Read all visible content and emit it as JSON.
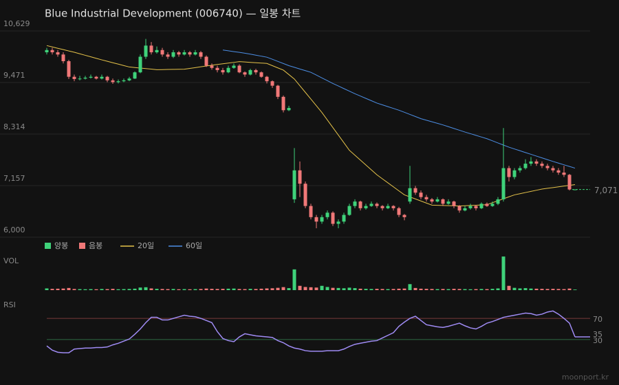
{
  "chart_data": [
    {
      "type": "candlestick",
      "title": "Blue Industrial Development (006740) — 일봉 차트",
      "ylim": [
        6000,
        10629
      ],
      "yticks": [
        {
          "value": 6000,
          "label": "6,000"
        },
        {
          "value": 7157,
          "label": "7,157"
        },
        {
          "value": 8314,
          "label": "8,314"
        },
        {
          "value": 9471,
          "label": "9,471"
        },
        {
          "value": 10629,
          "label": "10,629"
        }
      ],
      "grid": true,
      "candle_legend": [
        {
          "name": "양봉",
          "color": "#3fd27a"
        },
        {
          "name": "음봉",
          "color": "#f07878"
        }
      ],
      "candles": {
        "open": [
          10150,
          10200,
          10150,
          10100,
          9950,
          9600,
          9550,
          9560,
          9580,
          9600,
          9560,
          9600,
          9520,
          9480,
          9500,
          9520,
          9560,
          9700,
          10050,
          10300,
          10150,
          10200,
          10100,
          10050,
          10150,
          10100,
          10150,
          10100,
          10150,
          10050,
          9850,
          9800,
          9750,
          9700,
          9800,
          9850,
          9700,
          9650,
          9750,
          9700,
          9600,
          9500,
          9400,
          9150,
          8850,
          6850,
          7500,
          7200,
          6700,
          6450,
          6350,
          6450,
          6550,
          6300,
          6350,
          6500,
          6700,
          6800,
          6650,
          6700,
          6750,
          6700,
          6650,
          6700,
          6650,
          6500,
          6800,
          7100,
          7000,
          6900,
          6850,
          6800,
          6850,
          6750,
          6800,
          6700,
          6600,
          6650,
          6700,
          6650,
          6750,
          6700,
          6750,
          6850,
          7550,
          7350,
          7500,
          7550,
          7650,
          7700,
          7650,
          7600,
          7550,
          7500,
          7450,
          7400,
          7071
        ],
        "high": [
          10250,
          10250,
          10200,
          10150,
          9980,
          9650,
          9620,
          9620,
          9650,
          9620,
          9650,
          9620,
          9560,
          9540,
          9560,
          9600,
          9720,
          10100,
          10450,
          10380,
          10280,
          10250,
          10150,
          10200,
          10180,
          10200,
          10180,
          10200,
          10180,
          10080,
          9900,
          9850,
          9800,
          9850,
          9900,
          9880,
          9720,
          9780,
          9780,
          9720,
          9620,
          9520,
          9420,
          9180,
          8950,
          8000,
          7700,
          7250,
          6750,
          6500,
          6500,
          6600,
          6580,
          6400,
          6550,
          6750,
          6850,
          6820,
          6750,
          6800,
          6780,
          6720,
          6750,
          6720,
          6680,
          6520,
          7600,
          7150,
          7050,
          6950,
          6880,
          6900,
          6870,
          6850,
          6820,
          6720,
          6700,
          6750,
          6720,
          6780,
          6780,
          6800,
          6900,
          8450,
          7600,
          7550,
          7600,
          7750,
          7800,
          7750,
          7700,
          7650,
          7600,
          7550,
          7600,
          7420,
          7071
        ],
        "low": [
          10100,
          10100,
          10050,
          9900,
          9550,
          9500,
          9520,
          9540,
          9560,
          9540,
          9540,
          9480,
          9440,
          9450,
          9480,
          9500,
          9550,
          9680,
          10000,
          10100,
          10120,
          10050,
          10000,
          10020,
          10050,
          10080,
          10050,
          10080,
          10000,
          9820,
          9760,
          9700,
          9650,
          9680,
          9780,
          9680,
          9600,
          9630,
          9650,
          9580,
          9450,
          9350,
          9100,
          8800,
          8830,
          6770,
          6900,
          6650,
          6400,
          6200,
          6300,
          6400,
          6250,
          6200,
          6300,
          6480,
          6650,
          6600,
          6620,
          6680,
          6650,
          6600,
          6630,
          6600,
          6450,
          6380,
          6750,
          6950,
          6850,
          6800,
          6750,
          6780,
          6700,
          6730,
          6650,
          6550,
          6580,
          6620,
          6600,
          6630,
          6680,
          6680,
          6720,
          6800,
          7250,
          7300,
          7450,
          7520,
          7600,
          7600,
          7550,
          7500,
          7450,
          7400,
          7350,
          7050,
          7071
        ],
        "close": [
          10200,
          10150,
          10100,
          9950,
          9600,
          9550,
          9560,
          9580,
          9600,
          9560,
          9600,
          9520,
          9480,
          9500,
          9520,
          9560,
          9700,
          10050,
          10300,
          10150,
          10200,
          10100,
          10050,
          10150,
          10100,
          10150,
          10100,
          10150,
          10050,
          9850,
          9800,
          9750,
          9700,
          9800,
          9850,
          9700,
          9650,
          9750,
          9700,
          9600,
          9500,
          9400,
          9150,
          8850,
          8900,
          7500,
          7200,
          6700,
          6450,
          6350,
          6450,
          6550,
          6300,
          6350,
          6500,
          6700,
          6800,
          6650,
          6700,
          6750,
          6700,
          6650,
          6700,
          6650,
          6500,
          6450,
          7100,
          7000,
          6900,
          6850,
          6800,
          6850,
          6750,
          6800,
          6700,
          6600,
          6650,
          6700,
          6650,
          6750,
          6700,
          6750,
          6850,
          7550,
          7350,
          7500,
          7550,
          7650,
          7700,
          7650,
          7600,
          7550,
          7500,
          7450,
          7400,
          7071,
          7071
        ]
      },
      "series": [
        {
          "name": "20일",
          "color": "#e6c34a",
          "values": [
            10300,
            10270,
            10240,
            10210,
            10180,
            10150,
            10116,
            10082,
            10048,
            10014,
            9980,
            9948,
            9916,
            9884,
            9852,
            9820,
            9808,
            9796,
            9784,
            9772,
            9760,
            9762,
            9764,
            9766,
            9768,
            9770,
            9788,
            9806,
            9824,
            9842,
            9860,
            9876,
            9892,
            9908,
            9924,
            9940,
            9932,
            9924,
            9916,
            9908,
            9900,
            9850,
            9800,
            9750,
            9650,
            9550,
            9400,
            9250,
            9100,
            8950,
            8800,
            8630,
            8460,
            8290,
            8120,
            7950,
            7840,
            7730,
            7620,
            7510,
            7400,
            7310,
            7220,
            7130,
            7040,
            6950,
            6904,
            6858,
            6812,
            6766,
            6720,
            6716,
            6712,
            6708,
            6704,
            6700,
            6706,
            6712,
            6718,
            6724,
            6730,
            6774,
            6818,
            6862,
            6906,
            6950,
            6976,
            7002,
            7028,
            7054,
            7080,
            7097,
            7113,
            7130,
            7147,
            7163,
            7180
          ]
        },
        {
          "name": "60일",
          "color": "#4d8fe6",
          "values": [
            null,
            null,
            null,
            null,
            null,
            null,
            null,
            null,
            null,
            null,
            null,
            null,
            null,
            null,
            null,
            null,
            null,
            null,
            null,
            null,
            null,
            null,
            null,
            null,
            null,
            null,
            null,
            null,
            null,
            null,
            null,
            null,
            10200,
            10183,
            10165,
            10148,
            10130,
            10108,
            10085,
            10063,
            10040,
            9993,
            9945,
            9898,
            9850,
            9813,
            9775,
            9738,
            9700,
            9638,
            9575,
            9513,
            9450,
            9393,
            9335,
            9278,
            9220,
            9168,
            9115,
            9063,
            9010,
            8970,
            8930,
            8890,
            8850,
            8803,
            8755,
            8708,
            8660,
            8625,
            8590,
            8555,
            8520,
            8480,
            8440,
            8400,
            8360,
            8323,
            8285,
            8248,
            8210,
            8163,
            8115,
            8068,
            8020,
            7980,
            7940,
            7900,
            7860,
            7820,
            7780,
            7740,
            7700,
            7663,
            7625,
            7588,
            7550
          ]
        }
      ],
      "last_price": {
        "value": 7071,
        "label": "7,071",
        "color": "#3fd27a"
      }
    },
    {
      "type": "bar",
      "title": "VOL",
      "ylim": [
        0,
        2500000
      ],
      "values": [
        120000,
        90000,
        100000,
        110000,
        150000,
        80000,
        70000,
        60000,
        70000,
        60000,
        80000,
        70000,
        90000,
        60000,
        70000,
        80000,
        100000,
        180000,
        200000,
        120000,
        90000,
        80000,
        70000,
        80000,
        60000,
        70000,
        60000,
        70000,
        80000,
        110000,
        90000,
        80000,
        90000,
        100000,
        110000,
        80000,
        70000,
        90000,
        80000,
        100000,
        120000,
        130000,
        160000,
        210000,
        140000,
        1450000,
        300000,
        220000,
        200000,
        180000,
        300000,
        220000,
        160000,
        150000,
        130000,
        170000,
        140000,
        100000,
        90000,
        80000,
        90000,
        80000,
        70000,
        80000,
        100000,
        110000,
        420000,
        150000,
        100000,
        90000,
        80000,
        70000,
        80000,
        70000,
        90000,
        80000,
        70000,
        60000,
        70000,
        80000,
        70000,
        90000,
        120000,
        2350000,
        300000,
        160000,
        120000,
        140000,
        110000,
        100000,
        90000,
        80000,
        90000,
        80000,
        70000,
        110000,
        40000
      ]
    },
    {
      "type": "line",
      "title": "RSI",
      "ylim": [
        0,
        100
      ],
      "yticks": [
        30,
        70
      ],
      "tick_colors": [
        "#2f6b45",
        "#7a3a3a"
      ],
      "tick_label_colors": [
        "#3fd27a",
        "#e07a6a"
      ],
      "series": [
        {
          "color": "#a08cf5",
          "values": [
            18,
            10,
            6,
            5,
            5,
            12,
            13,
            14,
            14,
            15,
            15,
            16,
            20,
            23,
            27,
            31,
            40,
            50,
            62,
            72,
            72,
            67,
            67,
            70,
            73,
            76,
            74,
            73,
            70,
            66,
            62,
            45,
            32,
            28,
            26,
            35,
            41,
            39,
            37,
            36,
            35,
            34,
            28,
            24,
            18,
            14,
            12,
            9,
            8,
            8,
            8,
            9,
            9,
            9,
            12,
            17,
            21,
            23,
            25,
            27,
            28,
            33,
            38,
            43,
            55,
            63,
            70,
            74,
            66,
            58,
            56,
            54,
            53,
            55,
            58,
            61,
            56,
            52,
            50,
            55,
            61,
            64,
            68,
            72,
            74,
            76,
            78,
            80,
            79,
            76,
            78,
            82,
            84,
            78,
            70,
            61,
            35
          ]
        }
      ]
    }
  ],
  "footer": {
    "watermark": "moonport.kr"
  }
}
